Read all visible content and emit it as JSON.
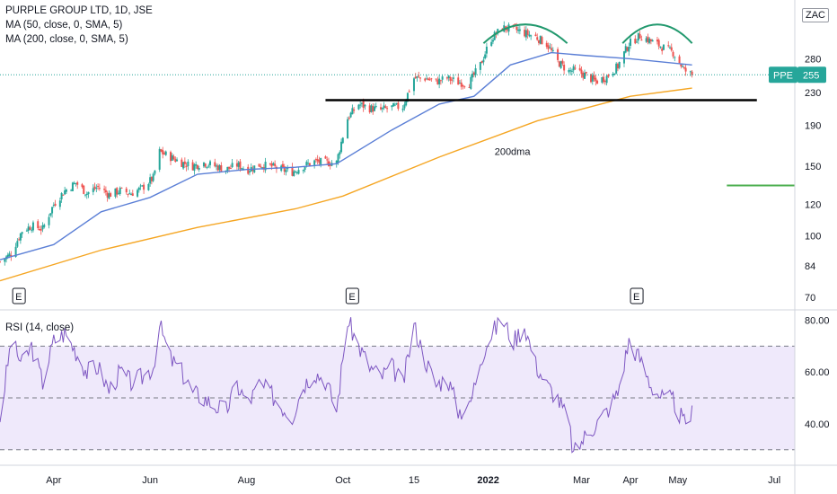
{
  "header": {
    "title_line": "PURPLE GROUP LTD, 1D, JSE",
    "ma50_label": "MA (50, close, 0, SMA, 5)",
    "ma200_label": "MA (200, close, 0, SMA, 5)",
    "currency": "ZAC"
  },
  "price_tag": {
    "symbol": "PPE",
    "value": "255"
  },
  "annotations": {
    "dma_text": "200dma"
  },
  "earnings_markers": [
    {
      "label": "E",
      "date": "2021-03-10"
    },
    {
      "label": "E",
      "date": "2021-10-07"
    },
    {
      "label": "E",
      "date": "2022-04-05"
    }
  ],
  "rsi_panel": {
    "title": "RSI (14, close)"
  },
  "colors": {
    "up": "#26a69a",
    "down": "#ef5350",
    "ma50": "#5b7fd6",
    "ma200": "#f5a623",
    "rsi": "#7e57c2",
    "rsi_band": "#efe9fb",
    "support": "#000000",
    "arc": "#22996e",
    "green_line": "#4caf50"
  },
  "chart_data": [
    {
      "type": "candlestick",
      "title": "PURPLE GROUP LTD, 1D, JSE",
      "y_scale": "log",
      "yticks": [
        70,
        84,
        100,
        120,
        150,
        190,
        230,
        280
      ],
      "ylim": [
        65,
        370
      ],
      "x_range": [
        "2021-02-26",
        "2022-07-14"
      ],
      "xticks": [
        {
          "label": "Apr",
          "date": "2021-04-01"
        },
        {
          "label": "Jun",
          "date": "2021-06-01"
        },
        {
          "label": "Aug",
          "date": "2021-08-01"
        },
        {
          "label": "Oct",
          "date": "2021-10-01"
        },
        {
          "label": "15",
          "date": "2021-11-15"
        },
        {
          "label": "2022",
          "date": "2022-01-01"
        },
        {
          "label": "Mar",
          "date": "2022-03-01"
        },
        {
          "label": "Apr",
          "date": "2022-04-01"
        },
        {
          "label": "May",
          "date": "2022-05-01"
        },
        {
          "label": "Jul",
          "date": "2022-07-01"
        }
      ],
      "close_path": [
        [
          "2021-02-26",
          86
        ],
        [
          "2021-03-05",
          90
        ],
        [
          "2021-03-12",
          103
        ],
        [
          "2021-03-18",
          106
        ],
        [
          "2021-03-25",
          104
        ],
        [
          "2021-04-01",
          120
        ],
        [
          "2021-04-08",
          130
        ],
        [
          "2021-04-15",
          136
        ],
        [
          "2021-04-22",
          128
        ],
        [
          "2021-04-29",
          133
        ],
        [
          "2021-05-06",
          127
        ],
        [
          "2021-05-13",
          130
        ],
        [
          "2021-05-20",
          128
        ],
        [
          "2021-05-27",
          132
        ],
        [
          "2021-06-03",
          140
        ],
        [
          "2021-06-07",
          163
        ],
        [
          "2021-06-14",
          158
        ],
        [
          "2021-06-21",
          153
        ],
        [
          "2021-06-28",
          150
        ],
        [
          "2021-07-05",
          153
        ],
        [
          "2021-07-12",
          150
        ],
        [
          "2021-07-19",
          147
        ],
        [
          "2021-07-26",
          151
        ],
        [
          "2021-08-02",
          147
        ],
        [
          "2021-08-09",
          151
        ],
        [
          "2021-08-16",
          150
        ],
        [
          "2021-08-23",
          147
        ],
        [
          "2021-08-30",
          145
        ],
        [
          "2021-09-06",
          150
        ],
        [
          "2021-09-13",
          154
        ],
        [
          "2021-09-20",
          153
        ],
        [
          "2021-09-27",
          153
        ],
        [
          "2021-10-04",
          198
        ],
        [
          "2021-10-11",
          215
        ],
        [
          "2021-10-18",
          210
        ],
        [
          "2021-10-25",
          208
        ],
        [
          "2021-11-01",
          211
        ],
        [
          "2021-11-08",
          212
        ],
        [
          "2021-11-15",
          250
        ],
        [
          "2021-11-22",
          250
        ],
        [
          "2021-11-29",
          245
        ],
        [
          "2021-12-06",
          250
        ],
        [
          "2021-12-13",
          244
        ],
        [
          "2021-12-20",
          243
        ],
        [
          "2021-12-27",
          270
        ],
        [
          "2022-01-03",
          315
        ],
        [
          "2022-01-10",
          335
        ],
        [
          "2022-01-17",
          333
        ],
        [
          "2022-01-24",
          325
        ],
        [
          "2022-01-31",
          318
        ],
        [
          "2022-02-07",
          305
        ],
        [
          "2022-02-14",
          275
        ],
        [
          "2022-02-21",
          260
        ],
        [
          "2022-02-24",
          262
        ],
        [
          "2022-03-03",
          255
        ],
        [
          "2022-03-10",
          245
        ],
        [
          "2022-03-17",
          252
        ],
        [
          "2022-03-24",
          268
        ],
        [
          "2022-03-31",
          305
        ],
        [
          "2022-04-07",
          320
        ],
        [
          "2022-04-14",
          310
        ],
        [
          "2022-04-21",
          300
        ],
        [
          "2022-04-28",
          290
        ],
        [
          "2022-05-05",
          262
        ],
        [
          "2022-05-10",
          255
        ]
      ],
      "series": [
        {
          "name": "MA (50, close, 0, SMA, 5)",
          "points": [
            [
              "2021-02-26",
              87
            ],
            [
              "2021-04-01",
              95
            ],
            [
              "2021-05-01",
              115
            ],
            [
              "2021-06-01",
              125
            ],
            [
              "2021-07-01",
              143
            ],
            [
              "2021-08-01",
              147
            ],
            [
              "2021-09-01",
              149
            ],
            [
              "2021-09-27",
              152
            ],
            [
              "2021-11-01",
              185
            ],
            [
              "2021-12-01",
              215
            ],
            [
              "2021-12-23",
              225
            ],
            [
              "2022-01-15",
              270
            ],
            [
              "2022-02-10",
              290
            ],
            [
              "2022-03-05",
              285
            ],
            [
              "2022-04-01",
              280
            ],
            [
              "2022-05-10",
              270
            ]
          ]
        },
        {
          "name": "MA (200, close, 0, SMA, 5)",
          "points": [
            [
              "2021-02-26",
              77
            ],
            [
              "2021-05-01",
              92
            ],
            [
              "2021-07-01",
              105
            ],
            [
              "2021-09-01",
              117
            ],
            [
              "2021-10-01",
              126
            ],
            [
              "2021-12-01",
              158
            ],
            [
              "2022-02-01",
              195
            ],
            [
              "2022-04-01",
              225
            ],
            [
              "2022-05-10",
              236
            ]
          ]
        }
      ],
      "support_line": {
        "value": 220,
        "from": "2021-09-20",
        "to": "2022-06-20"
      },
      "green_level": {
        "value": 134,
        "from": "2022-06-01",
        "to": "2022-07-14"
      },
      "last_price": 255
    },
    {
      "type": "line",
      "title": "RSI (14, close)",
      "yticks": [
        40,
        60,
        80
      ],
      "ylim": [
        24,
        84
      ],
      "bands": [
        30,
        50,
        70
      ],
      "values_path": [
        [
          "2021-02-26",
          42
        ],
        [
          "2021-03-05",
          72
        ],
        [
          "2021-03-12",
          63
        ],
        [
          "2021-03-18",
          70
        ],
        [
          "2021-03-25",
          56
        ],
        [
          "2021-04-01",
          72
        ],
        [
          "2021-04-08",
          75
        ],
        [
          "2021-04-15",
          68
        ],
        [
          "2021-04-22",
          60
        ],
        [
          "2021-04-29",
          62
        ],
        [
          "2021-05-06",
          53
        ],
        [
          "2021-05-13",
          60
        ],
        [
          "2021-05-20",
          56
        ],
        [
          "2021-05-27",
          58
        ],
        [
          "2021-06-03",
          62
        ],
        [
          "2021-06-07",
          78
        ],
        [
          "2021-06-14",
          65
        ],
        [
          "2021-06-21",
          60
        ],
        [
          "2021-06-28",
          52
        ],
        [
          "2021-07-05",
          50
        ],
        [
          "2021-07-12",
          47
        ],
        [
          "2021-07-19",
          45
        ],
        [
          "2021-07-26",
          55
        ],
        [
          "2021-08-02",
          48
        ],
        [
          "2021-08-09",
          55
        ],
        [
          "2021-08-16",
          52
        ],
        [
          "2021-08-23",
          47
        ],
        [
          "2021-08-30",
          43
        ],
        [
          "2021-09-06",
          55
        ],
        [
          "2021-09-13",
          60
        ],
        [
          "2021-09-20",
          57
        ],
        [
          "2021-09-27",
          45
        ],
        [
          "2021-10-04",
          80
        ],
        [
          "2021-10-11",
          70
        ],
        [
          "2021-10-18",
          62
        ],
        [
          "2021-10-25",
          58
        ],
        [
          "2021-11-01",
          62
        ],
        [
          "2021-11-08",
          55
        ],
        [
          "2021-11-15",
          78
        ],
        [
          "2021-11-22",
          65
        ],
        [
          "2021-11-29",
          55
        ],
        [
          "2021-12-06",
          58
        ],
        [
          "2021-12-13",
          45
        ],
        [
          "2021-12-20",
          46
        ],
        [
          "2021-12-27",
          65
        ],
        [
          "2022-01-03",
          75
        ],
        [
          "2022-01-10",
          80
        ],
        [
          "2022-01-17",
          72
        ],
        [
          "2022-01-24",
          78
        ],
        [
          "2022-01-31",
          63
        ],
        [
          "2022-02-07",
          55
        ],
        [
          "2022-02-14",
          50
        ],
        [
          "2022-02-21",
          40
        ],
        [
          "2022-02-24",
          28
        ],
        [
          "2022-03-03",
          35
        ],
        [
          "2022-03-10",
          40
        ],
        [
          "2022-03-17",
          45
        ],
        [
          "2022-03-24",
          52
        ],
        [
          "2022-03-31",
          72
        ],
        [
          "2022-04-07",
          65
        ],
        [
          "2022-04-14",
          55
        ],
        [
          "2022-04-21",
          50
        ],
        [
          "2022-04-28",
          49
        ],
        [
          "2022-05-05",
          40
        ],
        [
          "2022-05-10",
          44
        ]
      ]
    }
  ]
}
